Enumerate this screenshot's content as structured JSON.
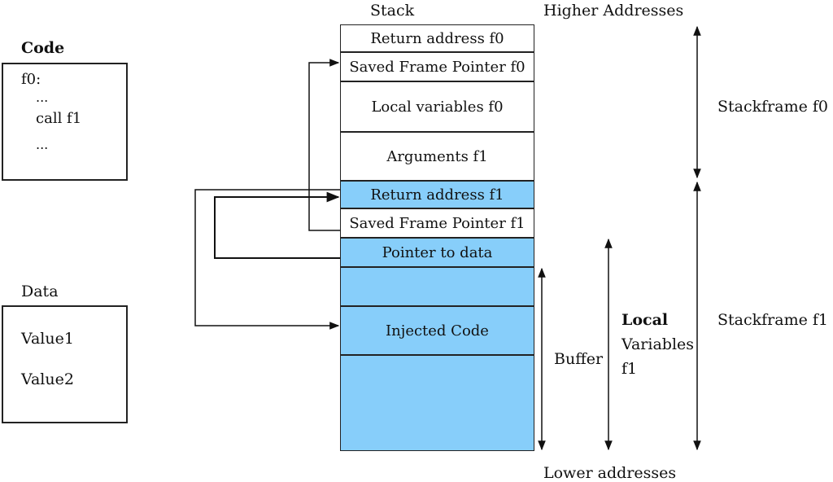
{
  "headers": {
    "stack": "Stack",
    "higher": "Higher Addresses",
    "lower": "Lower addresses"
  },
  "code": {
    "title": "Code",
    "lines": [
      "f0:",
      "...",
      "call f1",
      "..."
    ]
  },
  "data": {
    "title": "Data",
    "values": [
      "Value1",
      "Value2"
    ]
  },
  "stack_cells": [
    "Return address f0",
    "Saved Frame Pointer f0",
    "Local variables f0",
    "Arguments f1",
    "Return address f1",
    "Saved Frame Pointer f1",
    "Pointer to data",
    "",
    "Injected Code",
    ""
  ],
  "labels": {
    "stackframe_f0": "Stackframe f0",
    "stackframe_f1": "Stackframe f1",
    "buffer": "Buffer",
    "local_vars": [
      "Local",
      "Variables",
      "f1"
    ]
  },
  "colors": {
    "highlight": "#87cefa",
    "line": "#111111"
  }
}
